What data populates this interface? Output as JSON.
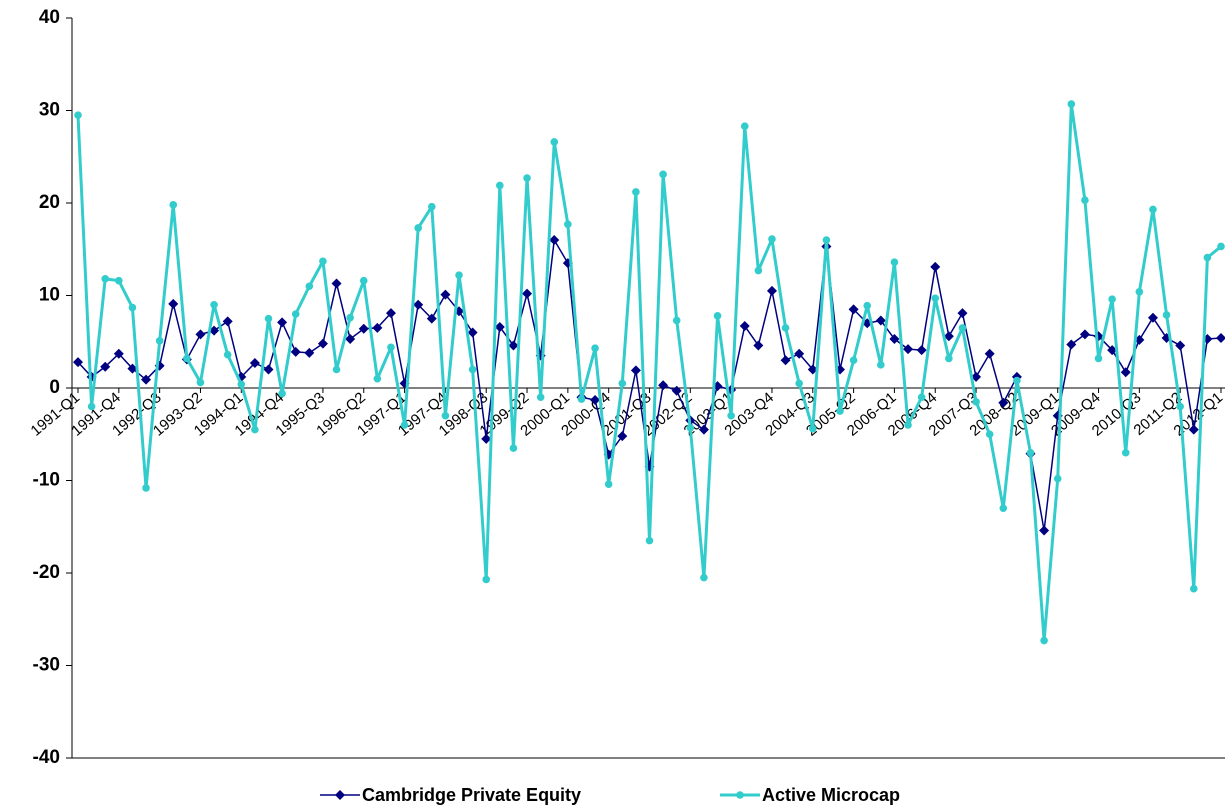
{
  "chart_data": {
    "type": "line",
    "categories": [
      "1991-Q1",
      null,
      null,
      "1991-Q4",
      null,
      null,
      "1992-Q3",
      null,
      null,
      "1993-Q2",
      null,
      null,
      "1994-Q1",
      null,
      null,
      "1994-Q4",
      null,
      null,
      "1995-Q3",
      null,
      null,
      "1996-Q2",
      null,
      null,
      "1997-Q1",
      null,
      null,
      "1997-Q4",
      null,
      null,
      "1998-Q3",
      null,
      null,
      "1999-Q2",
      null,
      null,
      "2000-Q1",
      null,
      null,
      "2000-Q4",
      null,
      null,
      "2001-Q3",
      null,
      null,
      "2002-Q2",
      null,
      null,
      "2003-Q1",
      null,
      null,
      "2003-Q4",
      null,
      null,
      "2004-Q3",
      null,
      null,
      "2005-Q2",
      null,
      null,
      "2006-Q1",
      null,
      null,
      "2006-Q4",
      null,
      null,
      "2007-Q3",
      null,
      null,
      "2008-Q2",
      null,
      null,
      "2009-Q1",
      null,
      null,
      "2009-Q4",
      null,
      null,
      "2010-Q3",
      null,
      null,
      "2011-Q2",
      null,
      null,
      "2012-Q1"
    ],
    "series": [
      {
        "name": "Cambridge Private Equity",
        "color": "#000080",
        "marker": "diamond",
        "values": [
          2.8,
          1.2,
          2.3,
          3.7,
          2.1,
          0.9,
          2.4,
          9.1,
          3.1,
          5.8,
          6.2,
          7.2,
          1.2,
          2.7,
          2,
          7.1,
          3.9,
          3.8,
          4.8,
          11.3,
          5.3,
          6.4,
          6.5,
          8.1,
          0.5,
          9,
          7.5,
          10.1,
          8.3,
          6,
          -5.5,
          6.6,
          4.6,
          10.2,
          3.5,
          16,
          13.5,
          -1,
          -1.3,
          -7.2,
          -5.2,
          1.9,
          -8.5,
          0.3,
          -0.3,
          -3.5,
          -4.5,
          0.2,
          -0.2,
          6.7,
          4.6,
          10.5,
          3,
          3.7,
          2,
          15.3,
          2,
          8.5,
          7,
          7.3,
          5.3,
          4.2,
          4.1,
          13.1,
          5.6,
          8.1,
          1.2,
          3.7,
          -1.6,
          1.2,
          -7.1,
          -15.4,
          -3,
          4.7,
          5.8,
          5.6,
          4.1,
          1.7,
          5.2,
          7.6,
          5.4,
          4.6,
          -4.5,
          5.3,
          5.4
        ]
      },
      {
        "name": "Active Microcap",
        "color": "#33cccc",
        "marker": "circle",
        "values": [
          29.5,
          -2,
          11.8,
          11.6,
          8.7,
          -10.8,
          5.1,
          19.8,
          3.2,
          0.6,
          9,
          3.6,
          0.4,
          -4.5,
          7.5,
          -0.6,
          8,
          11,
          13.7,
          2,
          7.6,
          11.6,
          1,
          4.4,
          -4,
          17.3,
          19.6,
          -3,
          12.2,
          2,
          -20.7,
          21.9,
          -6.5,
          22.7,
          -1,
          26.6,
          17.7,
          -1.2,
          4.3,
          -10.4,
          0.5,
          21.2,
          -16.5,
          23.1,
          7.3,
          -4.3,
          -20.5,
          7.8,
          -3,
          28.3,
          12.7,
          16.1,
          6.5,
          0.5,
          -4.4,
          16,
          -2.5,
          3,
          8.9,
          2.5,
          13.6,
          -4,
          -1,
          9.7,
          3.2,
          6.5,
          -1.5,
          -5,
          -13,
          0.8,
          -7,
          -27.3,
          -9.8,
          30.7,
          20.3,
          3.2,
          9.6,
          -7,
          10.4,
          19.3,
          7.9,
          -2,
          -21.7,
          14.1,
          15.3
        ]
      }
    ],
    "ylim": [
      -40,
      40
    ],
    "yticks": [
      -40,
      -30,
      -20,
      -10,
      0,
      10,
      20,
      30,
      40
    ],
    "grid": false,
    "legend": "bottom"
  }
}
